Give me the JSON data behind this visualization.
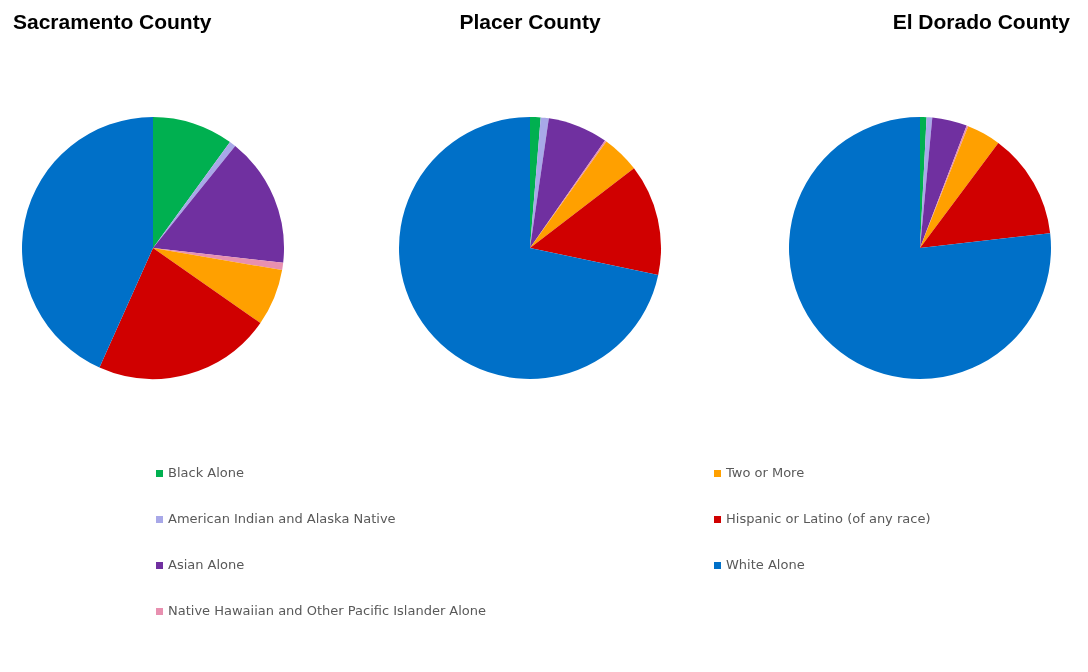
{
  "chart_data": [
    {
      "type": "pie",
      "title": "Sacramento County",
      "categories": [
        "Black Alone",
        "American Indian and Alaska Native",
        "Asian Alone",
        "Native Hawaiian and Other Pacific Islander Alone",
        "Two or More",
        "Hispanic or Latino (of any race)",
        "White Alone"
      ],
      "values": [
        10,
        0.8,
        16,
        0.9,
        7,
        22,
        43.3
      ],
      "colors": [
        "#00b050",
        "#a8a8e8",
        "#7030a0",
        "#e890b0",
        "#ffa000",
        "#d00000",
        "#0070c8"
      ],
      "legend": "bottom"
    },
    {
      "type": "pie",
      "title": "Placer County",
      "values": [
        1.3,
        1,
        7.4,
        0.2,
        4.7,
        13.7,
        71.7
      ],
      "colors": [
        "#00b050",
        "#a8a8e8",
        "#7030a0",
        "#e890b0",
        "#ffa000",
        "#d00000",
        "#0070c8"
      ]
    },
    {
      "type": "pie",
      "title": "El Dorado County",
      "values": [
        0.8,
        0.7,
        4.3,
        0.2,
        4.2,
        13,
        76.8
      ],
      "colors": [
        "#00b050",
        "#a8a8e8",
        "#7030a0",
        "#e890b0",
        "#ffa000",
        "#d00000",
        "#0070c8"
      ]
    }
  ]
}
